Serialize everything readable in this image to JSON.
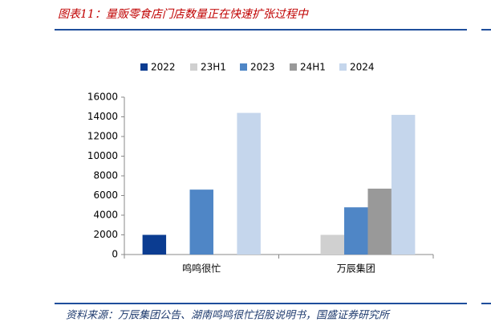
{
  "chart_data": {
    "type": "bar",
    "title": "图表11：量贩零食店门店数量正在快速扩张过程中",
    "source": "资料来源：万辰集团公告、湖南鸣鸣很忙招股说明书，国盛证券研究所",
    "categories": [
      "鸣鸣很忙",
      "万辰集团"
    ],
    "series": [
      {
        "name": "2022",
        "color": "#0b3c91",
        "values": [
          2000,
          null
        ]
      },
      {
        "name": "23H1",
        "color": "#d0d0d0",
        "values": [
          null,
          2000
        ]
      },
      {
        "name": "2023",
        "color": "#4f86c6",
        "values": [
          6600,
          4800
        ]
      },
      {
        "name": "24H1",
        "color": "#999999",
        "values": [
          null,
          6700
        ]
      },
      {
        "name": "2024",
        "color": "#c5d6ec",
        "values": [
          14400,
          14200
        ]
      }
    ],
    "ylim": [
      0,
      16000
    ],
    "yticks": [
      0,
      2000,
      4000,
      6000,
      8000,
      10000,
      12000,
      14000,
      16000
    ],
    "legend": "top"
  }
}
